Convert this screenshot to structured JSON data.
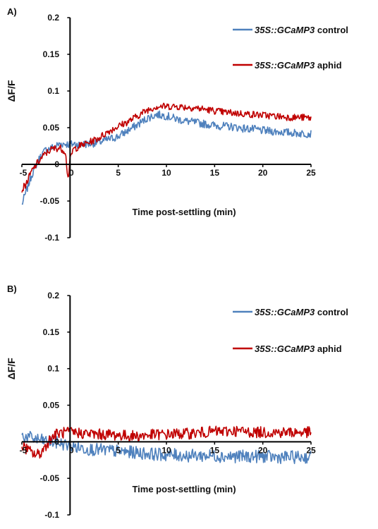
{
  "chart_data": [
    {
      "type": "line",
      "panel_label": "A)",
      "xlabel": "Time post-settling (min)",
      "ylabel": "ΔF/F",
      "xlim": [
        -5,
        25
      ],
      "ylim": [
        -0.1,
        0.2
      ],
      "x_ticks": [
        -5,
        0,
        5,
        10,
        15,
        20,
        25
      ],
      "y_ticks": [
        -0.1,
        -0.05,
        0,
        0.05,
        0.1,
        0.15,
        0.2
      ],
      "x_tick_labels": [
        "-5",
        "0",
        "5",
        "10",
        "15",
        "20",
        "25"
      ],
      "y_tick_labels": [
        "-0.1",
        "-0.05",
        "0",
        "0.05",
        "0.1",
        "0.15",
        "0.2"
      ],
      "grid": false,
      "legend_position": "top-right",
      "series": [
        {
          "legend_genotype": "35S::GCaMP3",
          "legend_condition": "control",
          "color": "#4f81bd",
          "x": [
            -5,
            -4.5,
            -4,
            -3.5,
            -3,
            -2.5,
            -2,
            -1.5,
            -1,
            -0.5,
            0,
            0.5,
            1,
            2,
            3,
            4,
            5,
            6,
            7,
            8,
            9,
            10,
            11,
            12,
            13,
            14,
            15,
            16,
            17,
            18,
            19,
            20,
            21,
            22,
            23,
            24,
            25
          ],
          "y": [
            -0.055,
            -0.035,
            -0.015,
            0.0,
            0.012,
            0.02,
            0.022,
            0.025,
            0.028,
            0.028,
            0.027,
            0.028,
            0.027,
            0.028,
            0.03,
            0.034,
            0.038,
            0.046,
            0.054,
            0.063,
            0.068,
            0.066,
            0.062,
            0.059,
            0.057,
            0.055,
            0.053,
            0.052,
            0.051,
            0.049,
            0.048,
            0.046,
            0.045,
            0.044,
            0.043,
            0.042,
            0.042
          ]
        },
        {
          "legend_genotype": "35S::GCaMP3",
          "legend_condition": "aphid",
          "color": "#c00000",
          "x": [
            -5,
            -4.5,
            -4,
            -3.5,
            -3,
            -2.5,
            -2,
            -1.5,
            -1,
            -0.5,
            -0.2,
            0,
            0.3,
            1,
            2,
            3,
            4,
            5,
            6,
            7,
            8,
            9,
            10,
            11,
            12,
            13,
            14,
            15,
            16,
            17,
            18,
            19,
            20,
            21,
            22,
            23,
            24,
            25
          ],
          "y": [
            -0.035,
            -0.025,
            -0.01,
            0.0,
            0.008,
            0.015,
            0.02,
            0.022,
            0.022,
            0.018,
            -0.02,
            0.005,
            0.02,
            0.025,
            0.03,
            0.036,
            0.045,
            0.052,
            0.058,
            0.066,
            0.074,
            0.079,
            0.079,
            0.079,
            0.078,
            0.077,
            0.075,
            0.073,
            0.071,
            0.07,
            0.069,
            0.068,
            0.067,
            0.066,
            0.065,
            0.064,
            0.064,
            0.063
          ]
        }
      ]
    },
    {
      "type": "line",
      "panel_label": "B)",
      "xlabel": "Time post-settling (min)",
      "ylabel": "ΔF/F",
      "xlim": [
        -5,
        25
      ],
      "ylim": [
        -0.1,
        0.2
      ],
      "x_ticks": [
        -5,
        0,
        5,
        10,
        15,
        20,
        25
      ],
      "y_ticks": [
        -0.1,
        -0.05,
        0,
        0.05,
        0.1,
        0.15,
        0.2
      ],
      "x_tick_labels": [
        "-5",
        "0",
        "5",
        "10",
        "15",
        "20",
        "25"
      ],
      "y_tick_labels": [
        "-0.1",
        "-0.05",
        "0",
        "0.05",
        "0.1",
        "0.15",
        "0.2"
      ],
      "grid": false,
      "legend_position": "top-right",
      "series": [
        {
          "legend_genotype": "35S::GCaMP3",
          "legend_condition": "control",
          "color": "#4f81bd",
          "x": [
            -5,
            -4,
            -3,
            -2,
            -1,
            0,
            1,
            2,
            3,
            4,
            5,
            6,
            7,
            8,
            9,
            10,
            11,
            12,
            13,
            14,
            15,
            16,
            17,
            18,
            19,
            20,
            21,
            22,
            23,
            24,
            25
          ],
          "y": [
            0.008,
            0.005,
            0.002,
            0.0,
            -0.002,
            -0.006,
            -0.008,
            -0.01,
            -0.011,
            -0.012,
            -0.013,
            -0.014,
            -0.015,
            -0.016,
            -0.017,
            -0.018,
            -0.018,
            -0.019,
            -0.019,
            -0.019,
            -0.019,
            -0.02,
            -0.02,
            -0.02,
            -0.02,
            -0.02,
            -0.021,
            -0.021,
            -0.021,
            -0.021,
            -0.021
          ]
        },
        {
          "legend_genotype": "35S::GCaMP3",
          "legend_condition": "aphid",
          "color": "#c00000",
          "x": [
            -5,
            -4.5,
            -4,
            -3.5,
            -3,
            -2.5,
            -2,
            -1.5,
            -1,
            0,
            1,
            2,
            3,
            4,
            5,
            6,
            7,
            8,
            9,
            10,
            11,
            12,
            13,
            14,
            15,
            16,
            17,
            18,
            19,
            20,
            21,
            22,
            23,
            24,
            25
          ],
          "y": [
            -0.005,
            -0.01,
            -0.015,
            -0.018,
            -0.015,
            -0.005,
            0.005,
            0.01,
            0.012,
            0.013,
            0.012,
            0.011,
            0.01,
            0.01,
            0.009,
            0.008,
            0.008,
            0.009,
            0.01,
            0.01,
            0.011,
            0.011,
            0.012,
            0.013,
            0.014,
            0.014,
            0.015,
            0.014,
            0.013,
            0.013,
            0.013,
            0.013,
            0.013,
            0.013,
            0.013
          ]
        }
      ]
    }
  ]
}
